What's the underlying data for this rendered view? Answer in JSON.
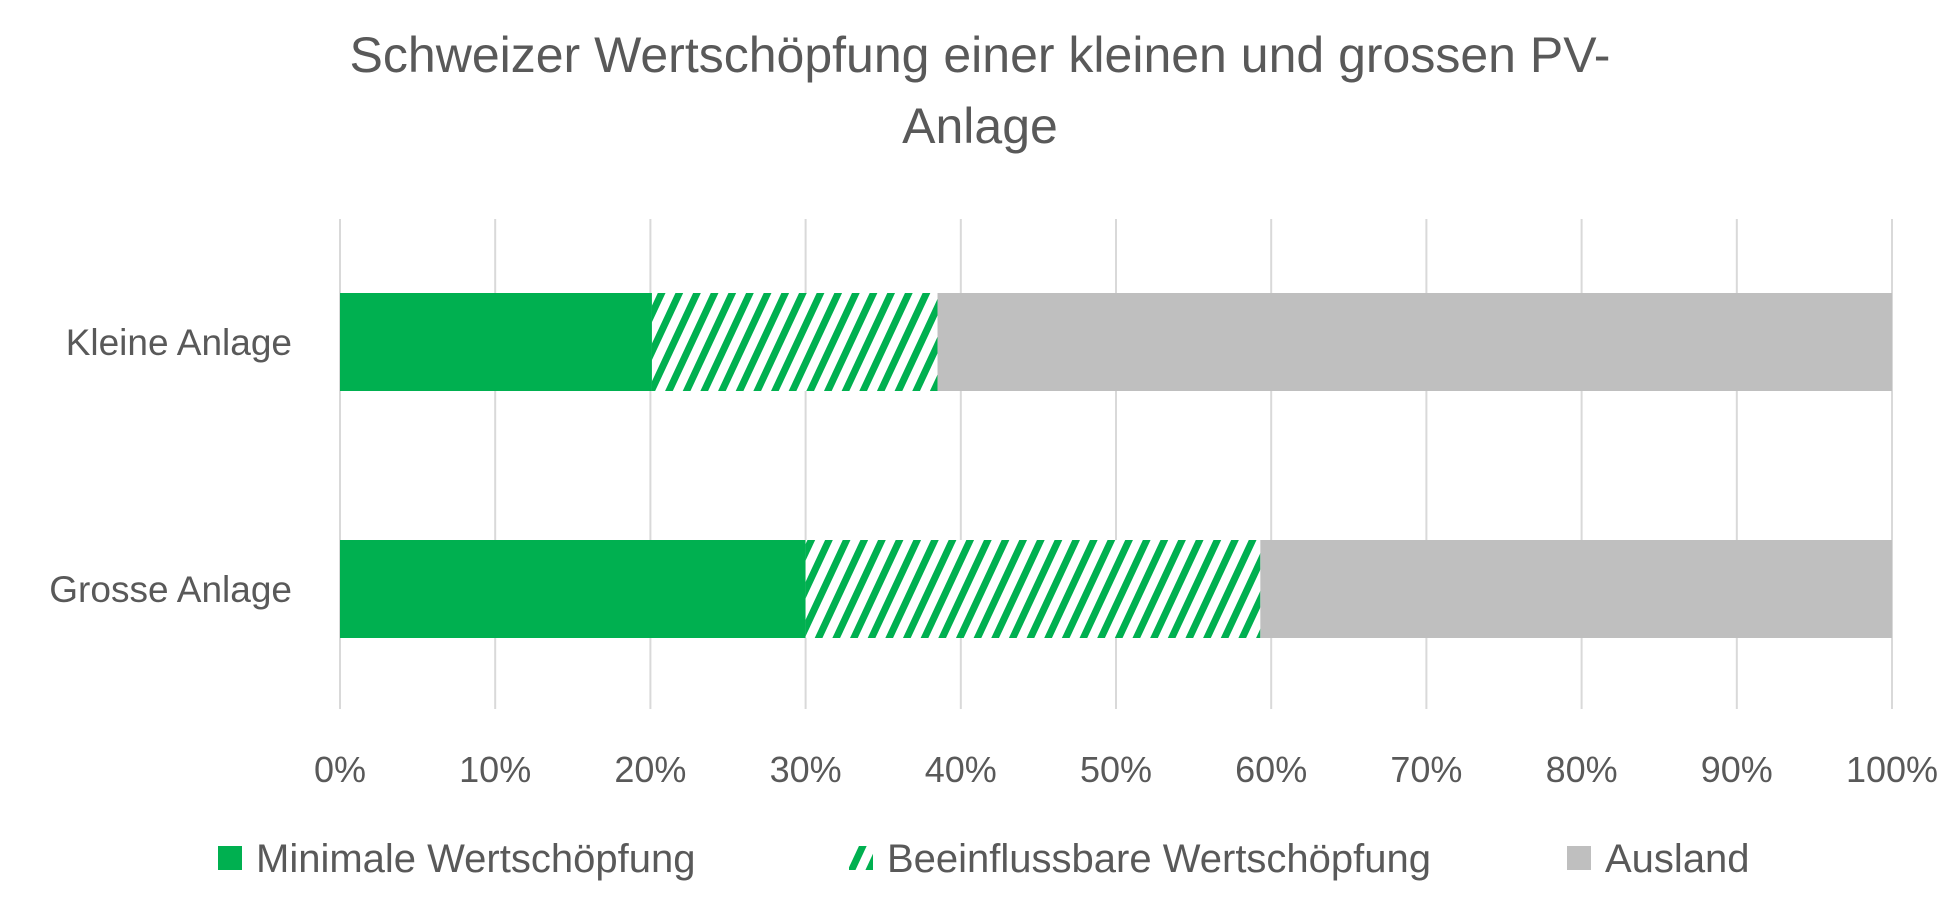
{
  "chart_data": {
    "type": "bar",
    "orientation": "horizontal",
    "stacked": "percent",
    "title": "Schweizer Wertschöpfung einer kleinen und grossen PV-Anlage",
    "title_lines": [
      "Schweizer Wertschöpfung einer kleinen und grossen PV-",
      "Anlage"
    ],
    "categories": [
      "Kleine Anlage",
      "Grosse Anlage"
    ],
    "series": [
      {
        "name": "Minimale Wertschöpfung",
        "values": [
          20.1,
          30.0
        ],
        "color": "#00B050",
        "fill": "solid"
      },
      {
        "name": "Beeinflussbare Wertschöpfung",
        "values": [
          18.4,
          29.3
        ],
        "color": "#00B050",
        "fill": "diagonal-hatch"
      },
      {
        "name": "Ausland",
        "values": [
          61.5,
          40.7
        ],
        "color": "#BFBFBF",
        "fill": "solid"
      }
    ],
    "xlim": [
      0,
      100
    ],
    "xticks": [
      "0%",
      "10%",
      "20%",
      "30%",
      "40%",
      "50%",
      "60%",
      "70%",
      "80%",
      "90%",
      "100%"
    ],
    "grid": true,
    "legend": "bottom",
    "xlabel": "",
    "ylabel": ""
  }
}
